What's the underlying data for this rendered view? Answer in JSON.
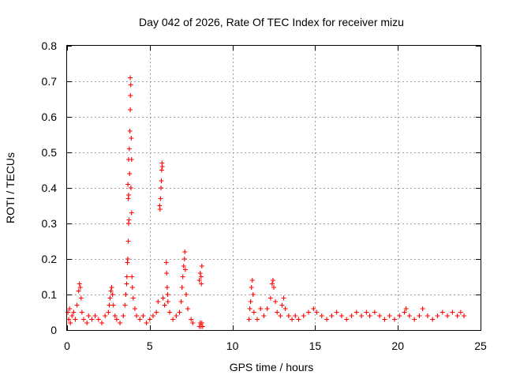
{
  "chart_data": {
    "type": "scatter",
    "title": "Day 042 of 2026, Rate Of TEC Index for receiver mizu",
    "xlabel": "GPS time / hours",
    "ylabel": "ROTI / TECUs",
    "xlim": [
      0,
      25
    ],
    "ylim": [
      0,
      0.8
    ],
    "x_ticks": [
      0,
      5,
      10,
      15,
      20,
      25
    ],
    "y_ticks": [
      0,
      0.1,
      0.2,
      0.3,
      0.4,
      0.5,
      0.6,
      0.7,
      0.8
    ],
    "x_tick_labels": [
      "0",
      "5",
      "10",
      "15",
      "20",
      "25"
    ],
    "y_tick_labels": [
      "0",
      "0.1",
      "0.2",
      "0.3",
      "0.4",
      "0.5",
      "0.6",
      "0.7",
      "0.8"
    ],
    "grid": true,
    "marker": "+",
    "color": "#ff0000",
    "series": [
      {
        "points": [
          [
            0.05,
            0.05
          ],
          [
            0.1,
            0.03
          ],
          [
            0.15,
            0.06
          ],
          [
            0.2,
            0.02
          ],
          [
            0.3,
            0.04
          ],
          [
            0.4,
            0.05
          ],
          [
            0.5,
            0.03
          ],
          [
            0.6,
            0.07
          ],
          [
            0.7,
            0.11
          ],
          [
            0.75,
            0.13
          ],
          [
            0.8,
            0.12
          ],
          [
            0.85,
            0.09
          ],
          [
            0.9,
            0.05
          ],
          [
            1.0,
            0.03
          ],
          [
            1.2,
            0.02
          ],
          [
            1.3,
            0.04
          ],
          [
            1.5,
            0.03
          ],
          [
            1.7,
            0.04
          ],
          [
            1.9,
            0.03
          ],
          [
            2.1,
            0.02
          ],
          [
            2.3,
            0.04
          ],
          [
            2.5,
            0.05
          ],
          [
            2.55,
            0.07
          ],
          [
            2.6,
            0.09
          ],
          [
            2.65,
            0.11
          ],
          [
            2.7,
            0.12
          ],
          [
            2.75,
            0.1
          ],
          [
            2.8,
            0.07
          ],
          [
            2.9,
            0.04
          ],
          [
            3.0,
            0.03
          ],
          [
            3.2,
            0.02
          ],
          [
            3.4,
            0.04
          ],
          [
            3.5,
            0.07
          ],
          [
            3.55,
            0.1
          ],
          [
            3.6,
            0.13
          ],
          [
            3.62,
            0.15
          ],
          [
            3.65,
            0.19
          ],
          [
            3.67,
            0.2
          ],
          [
            3.7,
            0.25
          ],
          [
            3.72,
            0.3
          ],
          [
            3.74,
            0.31
          ],
          [
            3.7,
            0.37
          ],
          [
            3.72,
            0.38
          ],
          [
            3.68,
            0.41
          ],
          [
            3.72,
            0.48
          ],
          [
            3.76,
            0.51
          ],
          [
            3.78,
            0.44
          ],
          [
            3.8,
            0.56
          ],
          [
            3.82,
            0.62
          ],
          [
            3.83,
            0.66
          ],
          [
            3.85,
            0.69
          ],
          [
            3.82,
            0.71
          ],
          [
            3.88,
            0.54
          ],
          [
            3.9,
            0.48
          ],
          [
            3.86,
            0.4
          ],
          [
            3.9,
            0.33
          ],
          [
            3.92,
            0.15
          ],
          [
            3.95,
            0.12
          ],
          [
            4.0,
            0.09
          ],
          [
            4.1,
            0.06
          ],
          [
            4.2,
            0.04
          ],
          [
            4.4,
            0.03
          ],
          [
            4.6,
            0.04
          ],
          [
            4.8,
            0.02
          ],
          [
            5.0,
            0.03
          ],
          [
            5.2,
            0.04
          ],
          [
            5.4,
            0.05
          ],
          [
            5.5,
            0.08
          ],
          [
            5.6,
            0.35
          ],
          [
            5.62,
            0.34
          ],
          [
            5.65,
            0.37
          ],
          [
            5.68,
            0.4
          ],
          [
            5.7,
            0.42
          ],
          [
            5.72,
            0.45
          ],
          [
            5.74,
            0.47
          ],
          [
            5.76,
            0.46
          ],
          [
            5.8,
            0.09
          ],
          [
            5.9,
            0.07
          ],
          [
            6.0,
            0.19
          ],
          [
            6.02,
            0.16
          ],
          [
            6.05,
            0.12
          ],
          [
            6.08,
            0.1
          ],
          [
            6.1,
            0.08
          ],
          [
            6.2,
            0.05
          ],
          [
            6.4,
            0.03
          ],
          [
            6.6,
            0.04
          ],
          [
            6.8,
            0.05
          ],
          [
            6.9,
            0.08
          ],
          [
            6.95,
            0.12
          ],
          [
            7.0,
            0.15
          ],
          [
            7.05,
            0.18
          ],
          [
            7.1,
            0.2
          ],
          [
            7.12,
            0.22
          ],
          [
            7.15,
            0.17
          ],
          [
            7.2,
            0.1
          ],
          [
            7.3,
            0.06
          ],
          [
            7.5,
            0.03
          ],
          [
            7.6,
            0.02
          ],
          [
            8.0,
            0.14
          ],
          [
            8.05,
            0.16
          ],
          [
            8.1,
            0.15
          ],
          [
            8.12,
            0.13
          ],
          [
            8.15,
            0.18
          ],
          [
            8.0,
            0.01
          ],
          [
            8.05,
            0.02
          ],
          [
            8.1,
            0.01
          ],
          [
            8.15,
            0.02
          ],
          [
            8.2,
            0.01
          ],
          [
            11.0,
            0.03
          ],
          [
            11.05,
            0.06
          ],
          [
            11.1,
            0.08
          ],
          [
            11.15,
            0.12
          ],
          [
            11.2,
            0.14
          ],
          [
            11.25,
            0.1
          ],
          [
            11.3,
            0.05
          ],
          [
            11.5,
            0.03
          ],
          [
            11.7,
            0.06
          ],
          [
            11.9,
            0.04
          ],
          [
            12.1,
            0.06
          ],
          [
            12.3,
            0.09
          ],
          [
            12.4,
            0.13
          ],
          [
            12.45,
            0.14
          ],
          [
            12.5,
            0.12
          ],
          [
            12.6,
            0.08
          ],
          [
            12.7,
            0.05
          ],
          [
            12.9,
            0.04
          ],
          [
            13.0,
            0.07
          ],
          [
            13.1,
            0.09
          ],
          [
            13.2,
            0.06
          ],
          [
            13.4,
            0.04
          ],
          [
            13.6,
            0.03
          ],
          [
            13.8,
            0.04
          ],
          [
            14.0,
            0.03
          ],
          [
            14.3,
            0.04
          ],
          [
            14.6,
            0.05
          ],
          [
            14.9,
            0.06
          ],
          [
            15.1,
            0.05
          ],
          [
            15.4,
            0.04
          ],
          [
            15.7,
            0.03
          ],
          [
            16.0,
            0.04
          ],
          [
            16.3,
            0.05
          ],
          [
            16.6,
            0.04
          ],
          [
            16.9,
            0.03
          ],
          [
            17.2,
            0.04
          ],
          [
            17.5,
            0.05
          ],
          [
            17.8,
            0.04
          ],
          [
            18.1,
            0.05
          ],
          [
            18.3,
            0.04
          ],
          [
            18.6,
            0.05
          ],
          [
            18.9,
            0.04
          ],
          [
            19.2,
            0.03
          ],
          [
            19.5,
            0.04
          ],
          [
            19.8,
            0.03
          ],
          [
            20.1,
            0.04
          ],
          [
            20.4,
            0.05
          ],
          [
            20.5,
            0.06
          ],
          [
            20.7,
            0.04
          ],
          [
            21.0,
            0.03
          ],
          [
            21.3,
            0.04
          ],
          [
            21.5,
            0.06
          ],
          [
            21.8,
            0.04
          ],
          [
            22.1,
            0.03
          ],
          [
            22.4,
            0.04
          ],
          [
            22.7,
            0.05
          ],
          [
            23.0,
            0.04
          ],
          [
            23.3,
            0.05
          ],
          [
            23.6,
            0.04
          ],
          [
            23.8,
            0.05
          ],
          [
            24.0,
            0.04
          ]
        ]
      }
    ]
  }
}
